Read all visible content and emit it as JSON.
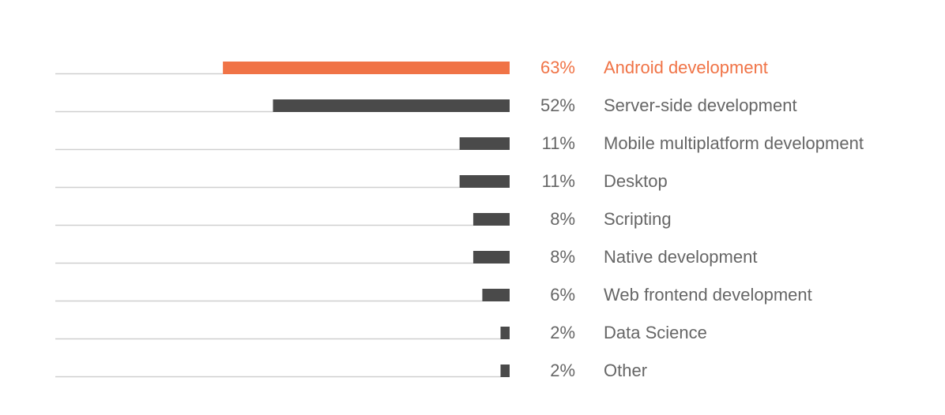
{
  "chart_data": {
    "type": "bar",
    "orientation": "horizontal",
    "xlim": [
      0,
      100
    ],
    "grid": false,
    "legend": "none",
    "colors": {
      "highlight": "#f07346",
      "bar": "#4a4a4a",
      "baseline": "#cfcfcf",
      "text": "#666666"
    },
    "categories": [
      "Android development",
      "Server-side development",
      "Mobile multiplatform development",
      "Desktop",
      "Scripting",
      "Native development",
      "Web frontend development",
      "Data Science",
      "Other"
    ],
    "values": [
      63,
      52,
      11,
      11,
      8,
      8,
      6,
      2,
      2
    ],
    "value_labels": [
      "63%",
      "52%",
      "11%",
      "11%",
      "8%",
      "8%",
      "6%",
      "2%",
      "2%"
    ],
    "highlighted": [
      true,
      false,
      false,
      false,
      false,
      false,
      false,
      false,
      false
    ]
  }
}
